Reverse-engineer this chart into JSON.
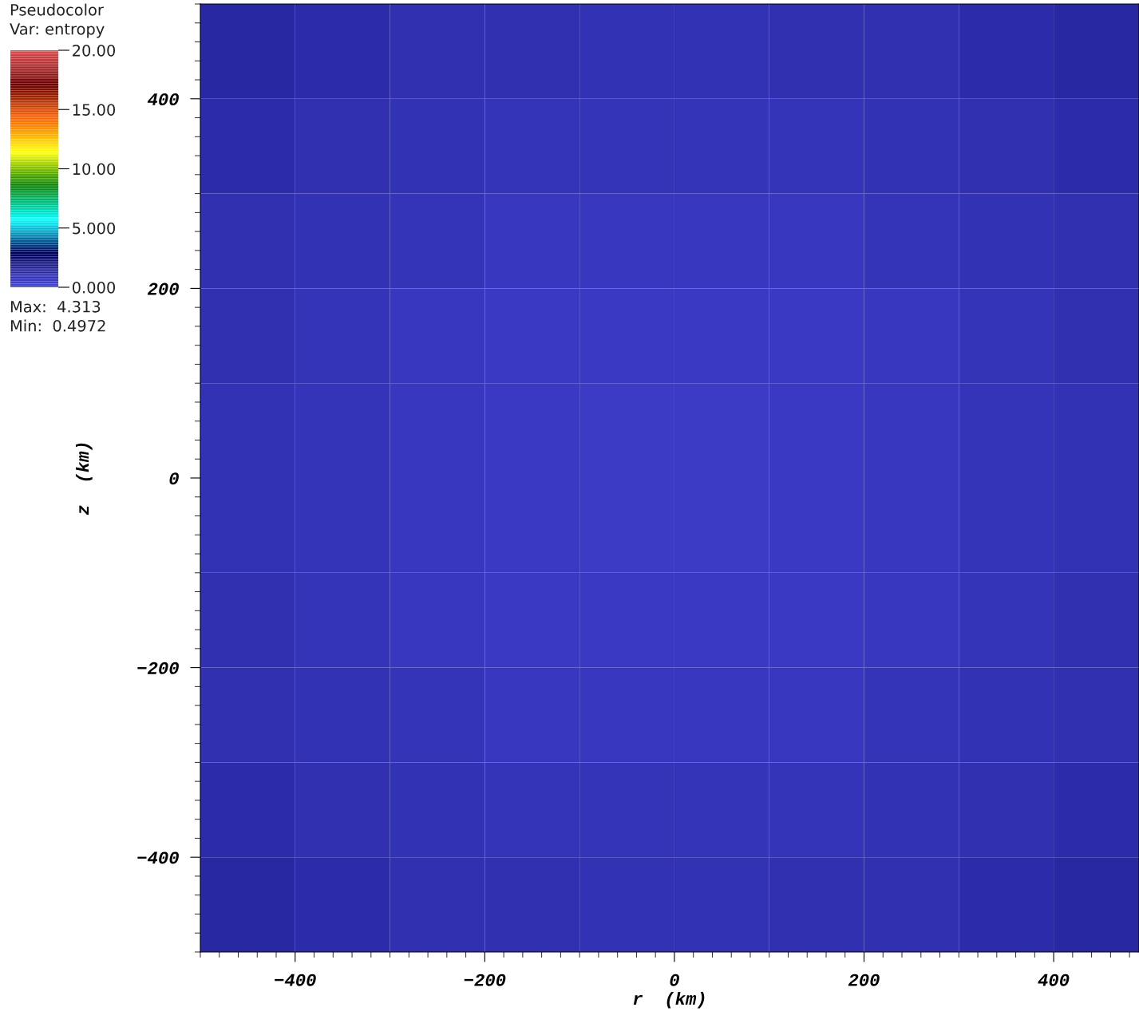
{
  "chart_data": {
    "type": "heatmap",
    "title": "Pseudocolor",
    "clabel": "Var: entropy",
    "xlabel": "r  (km)",
    "ylabel": "z  (km)",
    "x": [
      -450,
      -350,
      -250,
      -150,
      -50,
      50,
      150,
      250,
      350,
      450
    ],
    "y": [
      450,
      350,
      250,
      150,
      50,
      -50,
      -150,
      -250,
      -350,
      -450
    ],
    "cells": [
      [
        1.3,
        1.1,
        1.0,
        1.0,
        0.9,
        0.9,
        1.0,
        1.0,
        1.1,
        1.3
      ],
      [
        1.1,
        1.0,
        0.9,
        0.8,
        0.8,
        0.8,
        0.8,
        0.9,
        1.0,
        1.1
      ],
      [
        1.0,
        0.9,
        0.8,
        0.7,
        0.7,
        0.7,
        0.7,
        0.8,
        0.9,
        1.0
      ],
      [
        1.0,
        0.8,
        0.7,
        0.6,
        0.6,
        0.6,
        0.6,
        0.7,
        0.8,
        1.0
      ],
      [
        0.9,
        0.8,
        0.7,
        0.6,
        0.5,
        0.5,
        0.6,
        0.7,
        0.8,
        0.9
      ],
      [
        0.9,
        0.8,
        0.7,
        0.6,
        0.5,
        0.5,
        0.6,
        0.7,
        0.8,
        0.9
      ],
      [
        1.0,
        0.8,
        0.7,
        0.6,
        0.6,
        0.6,
        0.6,
        0.7,
        0.8,
        1.0
      ],
      [
        1.0,
        0.9,
        0.8,
        0.7,
        0.7,
        0.7,
        0.7,
        0.8,
        0.9,
        1.0
      ],
      [
        1.1,
        1.0,
        0.9,
        0.8,
        0.8,
        0.8,
        0.8,
        0.9,
        1.0,
        1.1
      ],
      [
        1.3,
        1.1,
        1.0,
        1.0,
        0.9,
        0.9,
        1.0,
        1.0,
        1.1,
        1.3
      ]
    ],
    "xlim": [
      -500,
      490
    ],
    "ylim": [
      -500,
      500
    ],
    "xticks": [
      -400,
      -200,
      0,
      200,
      400
    ],
    "yticks": [
      -400,
      -200,
      0,
      200,
      400
    ],
    "clim": [
      0,
      20
    ],
    "cticks": [
      {
        "value": 0,
        "label": "0.000"
      },
      {
        "value": 5,
        "label": "5.000"
      },
      {
        "value": 10,
        "label": "10.00"
      },
      {
        "value": 15,
        "label": "15.00"
      },
      {
        "value": 20,
        "label": "20.00"
      }
    ],
    "annotations": [
      "Max:  4.313",
      "Min:  0.4972"
    ],
    "grid": false
  }
}
